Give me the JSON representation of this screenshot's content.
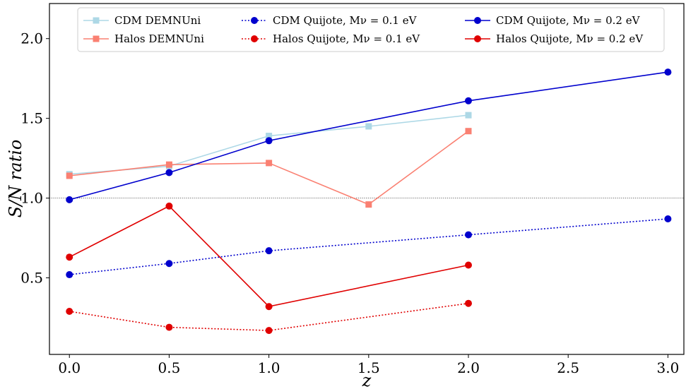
{
  "chart_data": {
    "type": "line",
    "title": "",
    "xlabel": "z",
    "ylabel": "S/N ratio",
    "xlim": [
      -0.1,
      3.08
    ],
    "ylim": [
      0.02,
      2.22
    ],
    "xticks": [
      "0.0",
      "0.5",
      "1.0",
      "1.5",
      "2.0",
      "2.5",
      "3.0"
    ],
    "yticks": [
      "0.5",
      "1.0",
      "1.5",
      "2.0"
    ],
    "reference_line": {
      "y": 1.0,
      "style": "dotted",
      "color": "#333333"
    },
    "legend_position": "top",
    "series": [
      {
        "name": "CDM DEMNUni",
        "color": "#add8e6",
        "marker": "square",
        "linestyle": "solid",
        "x": [
          0.0,
          0.5,
          1.0,
          1.5,
          2.0
        ],
        "y": [
          1.15,
          1.2,
          1.39,
          1.45,
          1.52
        ]
      },
      {
        "name": "Halos DEMNUni",
        "color": "#fa8072",
        "marker": "square",
        "linestyle": "solid",
        "x": [
          0.0,
          0.5,
          1.0,
          1.5,
          2.0
        ],
        "y": [
          1.14,
          1.21,
          1.22,
          0.96,
          1.42
        ]
      },
      {
        "name": "CDM Quijote, Mν = 0.1 eV",
        "color": "#0000cd",
        "marker": "circle",
        "linestyle": "dotted",
        "x": [
          0.0,
          0.5,
          1.0,
          2.0,
          3.0
        ],
        "y": [
          0.52,
          0.59,
          0.67,
          0.77,
          0.87
        ]
      },
      {
        "name": "Halos Quijote, Mν = 0.1 eV",
        "color": "#e00000",
        "marker": "circle",
        "linestyle": "dotted",
        "x": [
          0.0,
          0.5,
          1.0,
          2.0
        ],
        "y": [
          0.29,
          0.19,
          0.17,
          0.34
        ]
      },
      {
        "name": "CDM Quijote, Mν = 0.2 eV",
        "color": "#0000cd",
        "marker": "circle",
        "linestyle": "solid",
        "x": [
          0.0,
          0.5,
          1.0,
          2.0,
          3.0
        ],
        "y": [
          0.99,
          1.16,
          1.36,
          1.61,
          1.79
        ]
      },
      {
        "name": "Halos Quijote, Mν = 0.2 eV",
        "color": "#e00000",
        "marker": "circle",
        "linestyle": "solid",
        "x": [
          0.0,
          0.5,
          1.0,
          2.0
        ],
        "y": [
          0.63,
          0.95,
          0.32,
          0.58
        ]
      }
    ]
  }
}
